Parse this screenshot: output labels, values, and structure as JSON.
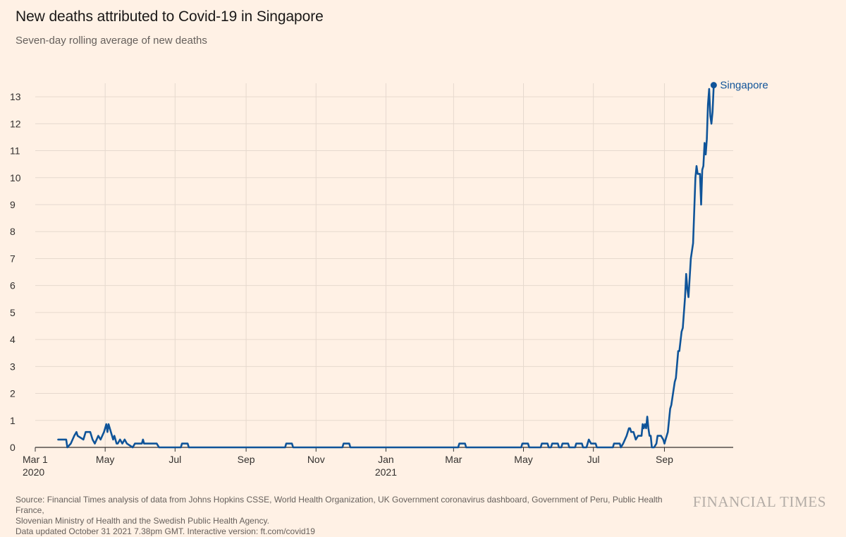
{
  "header": {
    "title": "New deaths attributed to Covid-19 in Singapore",
    "subtitle": "Seven-day rolling average of new deaths"
  },
  "footer": {
    "source_line1": "Source: Financial Times analysis of data from Johns Hopkins CSSE, World Health Organization, UK Government coronavirus dashboard, Government of Peru, Public Health France,",
    "source_line2": "Slovenian Ministry of Health and the Swedish Public Health Agency.",
    "updated_line": "Data updated October 31 2021 7.38pm GMT. Interactive version: ft.com/covid19",
    "brand": "FINANCIAL TIMES"
  },
  "colors": {
    "background": "#fff1e5",
    "grid": "#e6d9ce",
    "axis": "#33302e",
    "series": "#0f5499",
    "text": "#33302e"
  },
  "chart_data": {
    "type": "line",
    "title": "New deaths attributed to Covid-19 in Singapore",
    "subtitle": "Seven-day rolling average of new deaths",
    "xlabel": "",
    "ylabel": "",
    "ylim": [
      0,
      13.5
    ],
    "yticks": [
      0,
      1,
      2,
      3,
      4,
      5,
      6,
      7,
      8,
      9,
      10,
      11,
      12,
      13
    ],
    "xlim": [
      "2020-03-01",
      "2021-10-31"
    ],
    "xticks": [
      {
        "date": "2020-03-01",
        "label": "Mar 1",
        "year": "2020"
      },
      {
        "date": "2020-05-01",
        "label": "May",
        "year": ""
      },
      {
        "date": "2020-07-01",
        "label": "Jul",
        "year": ""
      },
      {
        "date": "2020-09-01",
        "label": "Sep",
        "year": ""
      },
      {
        "date": "2020-11-01",
        "label": "Nov",
        "year": ""
      },
      {
        "date": "2021-01-01",
        "label": "Jan",
        "year": "2021"
      },
      {
        "date": "2021-03-01",
        "label": "Mar",
        "year": ""
      },
      {
        "date": "2021-05-01",
        "label": "May",
        "year": ""
      },
      {
        "date": "2021-07-01",
        "label": "Jul",
        "year": ""
      },
      {
        "date": "2021-09-01",
        "label": "Sep",
        "year": ""
      }
    ],
    "grid": true,
    "legend": "end-of-line label",
    "series": [
      {
        "name": "Singapore",
        "color": "#0f5499",
        "points": [
          [
            "2020-03-21",
            0.29
          ],
          [
            "2020-03-28",
            0.29
          ],
          [
            "2020-03-29",
            0.0
          ],
          [
            "2020-04-01",
            0.14
          ],
          [
            "2020-04-04",
            0.43
          ],
          [
            "2020-04-06",
            0.57
          ],
          [
            "2020-04-07",
            0.43
          ],
          [
            "2020-04-12",
            0.29
          ],
          [
            "2020-04-14",
            0.57
          ],
          [
            "2020-04-18",
            0.57
          ],
          [
            "2020-04-20",
            0.29
          ],
          [
            "2020-04-22",
            0.14
          ],
          [
            "2020-04-25",
            0.43
          ],
          [
            "2020-04-27",
            0.29
          ],
          [
            "2020-04-30",
            0.57
          ],
          [
            "2020-05-02",
            0.86
          ],
          [
            "2020-05-03",
            0.57
          ],
          [
            "2020-05-04",
            0.86
          ],
          [
            "2020-05-06",
            0.57
          ],
          [
            "2020-05-08",
            0.29
          ],
          [
            "2020-05-09",
            0.43
          ],
          [
            "2020-05-11",
            0.14
          ],
          [
            "2020-05-12",
            0.14
          ],
          [
            "2020-05-14",
            0.29
          ],
          [
            "2020-05-16",
            0.14
          ],
          [
            "2020-05-18",
            0.29
          ],
          [
            "2020-05-20",
            0.14
          ],
          [
            "2020-05-25",
            0.0
          ],
          [
            "2020-05-27",
            0.14
          ],
          [
            "2020-06-02",
            0.14
          ],
          [
            "2020-06-03",
            0.29
          ],
          [
            "2020-06-04",
            0.14
          ],
          [
            "2020-06-15",
            0.14
          ],
          [
            "2020-06-17",
            0.0
          ],
          [
            "2020-07-06",
            0.0
          ],
          [
            "2020-07-07",
            0.14
          ],
          [
            "2020-07-12",
            0.14
          ],
          [
            "2020-07-13",
            0.0
          ],
          [
            "2020-10-05",
            0.0
          ],
          [
            "2020-10-06",
            0.14
          ],
          [
            "2020-10-11",
            0.14
          ],
          [
            "2020-10-12",
            0.0
          ],
          [
            "2020-11-24",
            0.0
          ],
          [
            "2020-11-25",
            0.14
          ],
          [
            "2020-11-30",
            0.14
          ],
          [
            "2020-12-01",
            0.0
          ],
          [
            "2021-03-05",
            0.0
          ],
          [
            "2021-03-06",
            0.14
          ],
          [
            "2021-03-11",
            0.14
          ],
          [
            "2021-03-12",
            0.0
          ],
          [
            "2021-04-29",
            0.0
          ],
          [
            "2021-04-30",
            0.14
          ],
          [
            "2021-05-05",
            0.14
          ],
          [
            "2021-05-06",
            0.0
          ],
          [
            "2021-05-16",
            0.0
          ],
          [
            "2021-05-17",
            0.14
          ],
          [
            "2021-05-22",
            0.14
          ],
          [
            "2021-05-23",
            0.0
          ],
          [
            "2021-05-25",
            0.0
          ],
          [
            "2021-05-26",
            0.14
          ],
          [
            "2021-05-31",
            0.14
          ],
          [
            "2021-06-01",
            0.0
          ],
          [
            "2021-06-03",
            0.0
          ],
          [
            "2021-06-04",
            0.14
          ],
          [
            "2021-06-09",
            0.14
          ],
          [
            "2021-06-10",
            0.0
          ],
          [
            "2021-06-15",
            0.0
          ],
          [
            "2021-06-16",
            0.14
          ],
          [
            "2021-06-21",
            0.14
          ],
          [
            "2021-06-22",
            0.0
          ],
          [
            "2021-06-25",
            0.0
          ],
          [
            "2021-06-26",
            0.14
          ],
          [
            "2021-06-27",
            0.29
          ],
          [
            "2021-06-29",
            0.14
          ],
          [
            "2021-07-03",
            0.14
          ],
          [
            "2021-07-04",
            0.0
          ],
          [
            "2021-07-18",
            0.0
          ],
          [
            "2021-07-19",
            0.14
          ],
          [
            "2021-07-24",
            0.14
          ],
          [
            "2021-07-25",
            0.0
          ],
          [
            "2021-07-27",
            0.14
          ],
          [
            "2021-07-30",
            0.43
          ],
          [
            "2021-08-01",
            0.71
          ],
          [
            "2021-08-02",
            0.71
          ],
          [
            "2021-08-03",
            0.57
          ],
          [
            "2021-08-05",
            0.57
          ],
          [
            "2021-08-07",
            0.29
          ],
          [
            "2021-08-09",
            0.43
          ],
          [
            "2021-08-12",
            0.43
          ],
          [
            "2021-08-13",
            0.86
          ],
          [
            "2021-08-14",
            0.71
          ],
          [
            "2021-08-15",
            0.86
          ],
          [
            "2021-08-16",
            0.71
          ],
          [
            "2021-08-17",
            1.14
          ],
          [
            "2021-08-18",
            0.71
          ],
          [
            "2021-08-19",
            0.43
          ],
          [
            "2021-08-20",
            0.43
          ],
          [
            "2021-08-21",
            0.0
          ],
          [
            "2021-08-23",
            0.0
          ],
          [
            "2021-08-25",
            0.14
          ],
          [
            "2021-08-26",
            0.43
          ],
          [
            "2021-08-29",
            0.43
          ],
          [
            "2021-08-31",
            0.29
          ],
          [
            "2021-09-01",
            0.14
          ],
          [
            "2021-09-02",
            0.29
          ],
          [
            "2021-09-04",
            0.57
          ],
          [
            "2021-09-06",
            1.43
          ],
          [
            "2021-09-07",
            1.57
          ],
          [
            "2021-09-10",
            2.43
          ],
          [
            "2021-09-11",
            2.57
          ],
          [
            "2021-09-13",
            3.57
          ],
          [
            "2021-09-14",
            3.57
          ],
          [
            "2021-09-16",
            4.29
          ],
          [
            "2021-09-17",
            4.43
          ],
          [
            "2021-09-19",
            5.57
          ],
          [
            "2021-09-20",
            6.43
          ],
          [
            "2021-09-21",
            5.86
          ],
          [
            "2021-09-22",
            5.57
          ],
          [
            "2021-09-24",
            7.0
          ],
          [
            "2021-09-26",
            7.57
          ],
          [
            "2021-09-28",
            10.0
          ],
          [
            "2021-09-29",
            10.43
          ],
          [
            "2021-09-30",
            10.14
          ],
          [
            "2021-10-02",
            10.14
          ],
          [
            "2021-10-03",
            9.0
          ],
          [
            "2021-10-04",
            10.29
          ],
          [
            "2021-10-05",
            10.43
          ],
          [
            "2021-10-06",
            11.29
          ],
          [
            "2021-10-07",
            10.86
          ],
          [
            "2021-10-08",
            11.43
          ],
          [
            "2021-10-09",
            12.71
          ],
          [
            "2021-10-10",
            13.29
          ],
          [
            "2021-10-11",
            12.29
          ],
          [
            "2021-10-12",
            12.0
          ],
          [
            "2021-10-13",
            12.43
          ],
          [
            "2021-10-14",
            13.43
          ]
        ]
      }
    ]
  }
}
